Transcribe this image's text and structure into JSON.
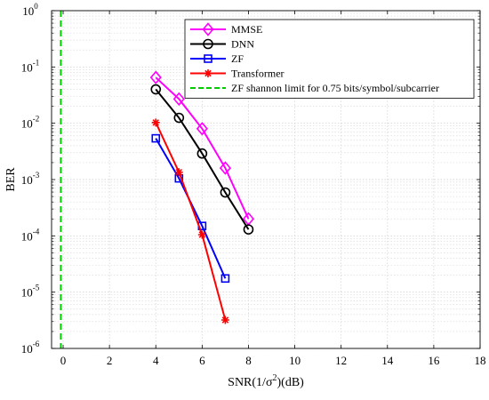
{
  "chart_data": {
    "type": "line",
    "xlabel": "SNR(1/σ²)(dB)",
    "ylabel": "BER",
    "xlim": [
      -0.5,
      18
    ],
    "ylim": [
      1e-06,
      1
    ],
    "y_scale": "log",
    "x_ticks": [
      0,
      2,
      4,
      6,
      8,
      10,
      12,
      14,
      16,
      18
    ],
    "x_tick_labels": [
      "0",
      "2",
      "4",
      "6",
      "8",
      "10",
      "12",
      "14",
      "16",
      "18"
    ],
    "y_ticks": [
      1e-06,
      1e-05,
      0.0001,
      0.001,
      0.01,
      0.1,
      1
    ],
    "y_tick_labels": [
      {
        "base": "10",
        "exp": "-6"
      },
      {
        "base": "10",
        "exp": "-5"
      },
      {
        "base": "10",
        "exp": "-4"
      },
      {
        "base": "10",
        "exp": "-3"
      },
      {
        "base": "10",
        "exp": "-2"
      },
      {
        "base": "10",
        "exp": "-1"
      },
      {
        "base": "10",
        "exp": "0"
      }
    ],
    "grid": true,
    "legend_position": "top-right",
    "series": [
      {
        "name": "MMSE",
        "color": "#ff00ff",
        "marker": "diamond",
        "x": [
          4,
          5,
          6,
          7,
          8
        ],
        "y": [
          0.065,
          0.027,
          0.008,
          0.0016,
          0.0002
        ]
      },
      {
        "name": "DNN",
        "color": "#000000",
        "marker": "circle",
        "x": [
          4,
          5,
          6,
          7,
          8
        ],
        "y": [
          0.04,
          0.0125,
          0.0029,
          0.00059,
          0.00013
        ]
      },
      {
        "name": "ZF",
        "color": "#0000ff",
        "marker": "square",
        "x": [
          4,
          5,
          6,
          7
        ],
        "y": [
          0.0054,
          0.00105,
          0.00015,
          1.75e-05
        ]
      },
      {
        "name": "Transformer",
        "color": "#ff0000",
        "marker": "star",
        "x": [
          4,
          5,
          6,
          7
        ],
        "y": [
          0.0103,
          0.00135,
          0.000105,
          3.2e-06
        ]
      },
      {
        "name": "ZF shannon limit for 0.75 bits/symbol/subcarrier",
        "color": "#00cc00",
        "marker": "none",
        "dashed": true,
        "vertical_x": -0.1
      }
    ]
  }
}
